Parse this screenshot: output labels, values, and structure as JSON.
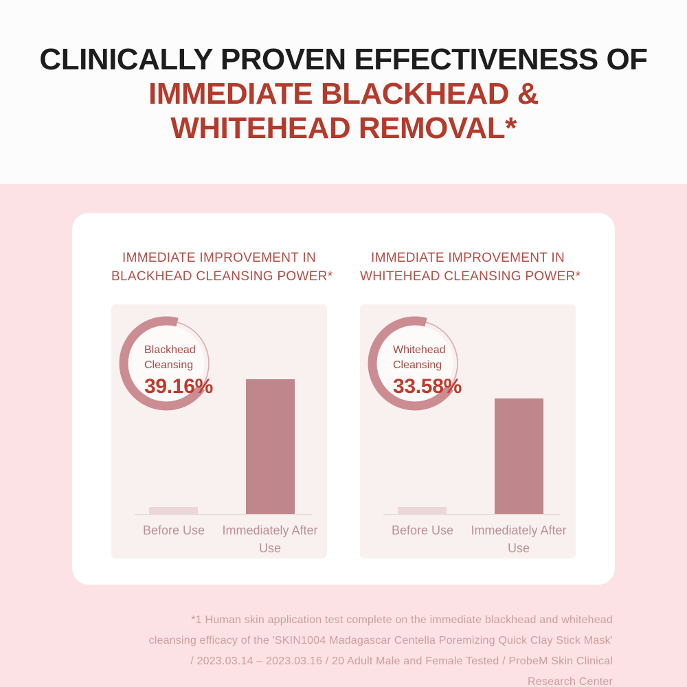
{
  "header": {
    "title_black": "CLINICALLY PROVEN EFFECTIVENESS OF",
    "title_red_line1": "IMMEDIATE BLACKHEAD &",
    "title_red_line2": "WHITEHEAD REMOVAL*"
  },
  "chart_data": [
    {
      "type": "bar",
      "title": "IMMEDIATE IMPROVEMENT IN BLACKHEAD CLEANSING POWER*",
      "title_line1": "IMMEDIATE IMPROVEMENT IN",
      "title_line2": "BLACKHEAD CLEANSING POWER*",
      "donut": {
        "label_line1": "Blackhead",
        "label_line2": "Cleansing",
        "value_text": "39.16%",
        "value_percent": 39.16
      },
      "categories": [
        "Before Use",
        "Immediately After Use"
      ],
      "values": [
        2.0,
        39.16
      ],
      "value_unit": "%",
      "legend": "none",
      "grid": "off"
    },
    {
      "type": "bar",
      "title": "IMMEDIATE IMPROVEMENT IN WHITEHEAD CLEANSING POWER*",
      "title_line1": "IMMEDIATE IMPROVEMENT IN",
      "title_line2": "WHITEHEAD CLEANSING POWER*",
      "donut": {
        "label_line1": "Whitehead",
        "label_line2": "Cleansing",
        "value_text": "33.58%",
        "value_percent": 33.58
      },
      "categories": [
        "Before Use",
        "Immediately After Use"
      ],
      "values": [
        2.0,
        33.58
      ],
      "value_unit": "%",
      "legend": "none",
      "grid": "off"
    }
  ],
  "footnote": {
    "lines": [
      "*1 Human skin application test complete on the immediate blackhead and whitehead",
      "cleansing efficacy of the 'SKIN1004 Madagascar Centella Poremizing Quick Clay Stick Mask'",
      "/ 2023.03.14 – 2023.03.16 / 20 Adult Male and Female Tested / ProbeM Skin Clinical",
      "Research Center"
    ]
  },
  "colors": {
    "top_background": "#fdfcfc",
    "pink_background": "#fce2e4",
    "card_background": "#ffffff",
    "panel_background": "#f8f1f0",
    "headline_black": "#1d1d1d",
    "headline_red": "#b43a2c",
    "panel_title_red": "#b24e46",
    "donut_arc_thick": "#cb8c92",
    "donut_arc_thin": "#d6abaf",
    "donut_label_red": "#a34d47",
    "donut_value_red": "#c0392c",
    "bar_before": "#ecd6d7",
    "bar_after": "#bf868b",
    "axis_line": "#ddcecd",
    "bar_label": "#ba9093",
    "footnote_text": "#cb9da1"
  }
}
